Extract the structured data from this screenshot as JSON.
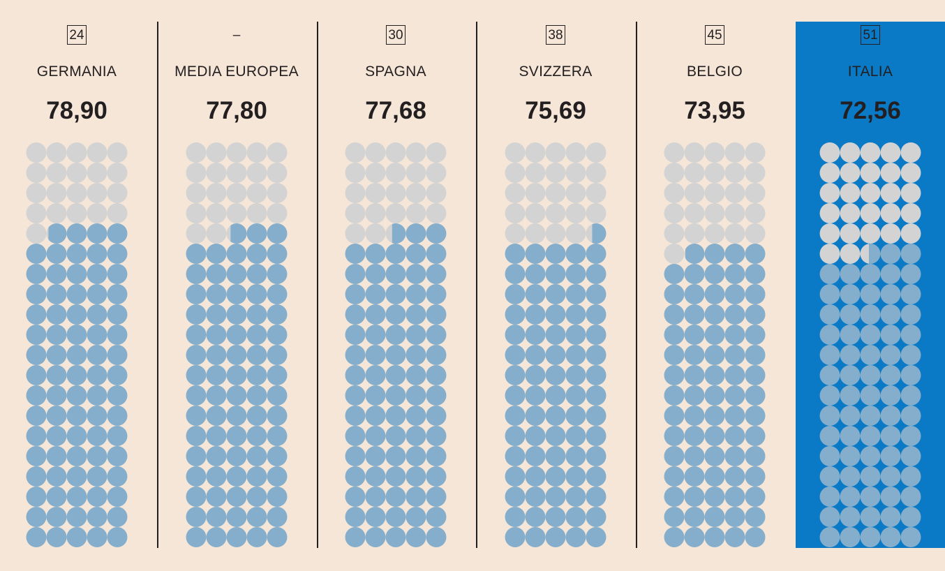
{
  "chart_data": {
    "type": "waffle",
    "max_value": 100,
    "grid": {
      "columns": 5,
      "rows": 20
    },
    "colors": {
      "background": "#f5e6d7",
      "highlight_background": "#0a7ac6",
      "filled": "#84aecb",
      "empty": "#d3d3d3",
      "text": "#231f20"
    },
    "series": [
      {
        "rank": "24",
        "name": "GERMANIA",
        "value_label": "78,90",
        "value": 78.9,
        "highlight": false
      },
      {
        "rank": "–",
        "name": "MEDIA EUROPEA",
        "value_label": "77,80",
        "value": 77.8,
        "highlight": false
      },
      {
        "rank": "30",
        "name": "SPAGNA",
        "value_label": "77,68",
        "value": 77.68,
        "highlight": false
      },
      {
        "rank": "38",
        "name": "SVIZZERA",
        "value_label": "75,69",
        "value": 75.69,
        "highlight": false
      },
      {
        "rank": "45",
        "name": "BELGIO",
        "value_label": "73,95",
        "value": 73.95,
        "highlight": false
      },
      {
        "rank": "51",
        "name": "ITALIA",
        "value_label": "72,56",
        "value": 72.56,
        "highlight": true
      }
    ]
  }
}
